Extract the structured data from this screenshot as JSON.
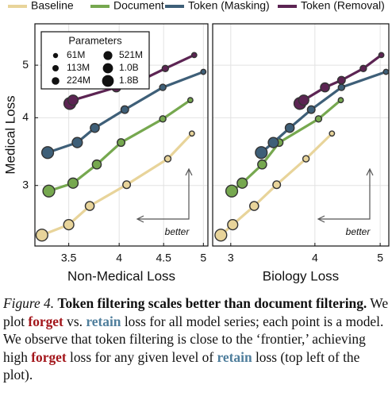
{
  "chart_data": {
    "type": "line",
    "log_scale": true,
    "grid": true,
    "legend": [
      {
        "name": "Baseline",
        "color": "#e8d49a"
      },
      {
        "name": "Document",
        "color": "#76a84f"
      },
      {
        "name": "Token (Masking)",
        "color": "#3e5f78"
      },
      {
        "name": "Token (Removal)",
        "color": "#5c2453"
      }
    ],
    "size_legend": {
      "title": "Parameters",
      "labels": [
        "61M",
        "113M",
        "224M",
        "521M",
        "1.0B",
        "1.8B"
      ]
    },
    "y_label": "Medical Loss",
    "ylim": [
      2.32,
      5.96
    ],
    "yticks": [
      3,
      4,
      5
    ],
    "annotation": "better",
    "panels": [
      {
        "x_label": "Non-Medical Loss",
        "xlim": [
          3.2,
          5.06
        ],
        "xticks": [
          3.5,
          4,
          4.5,
          5
        ],
        "series": [
          {
            "x": [
              3.26,
              3.5,
              3.7,
              4.08,
              4.55,
              4.85
            ],
            "values": [
              2.43,
              2.54,
              2.75,
              3.01,
              3.36,
              3.74
            ]
          },
          {
            "x": [
              3.32,
              3.54,
              3.77,
              4.02,
              4.49,
              4.83
            ],
            "values": [
              2.93,
              3.03,
              3.28,
              3.6,
              3.98,
              4.31
            ]
          },
          {
            "x": [
              3.31,
              3.58,
              3.75,
              4.06,
              4.49,
              5.0
            ],
            "values": [
              3.45,
              3.6,
              3.83,
              4.14,
              4.55,
              4.86
            ]
          },
          {
            "x": [
              3.51,
              3.54,
              3.97,
              4.24,
              4.52,
              4.88
            ],
            "values": [
              4.25,
              4.31,
              4.55,
              4.69,
              4.93,
              5.22
            ]
          }
        ]
      },
      {
        "x_label": "Biology Loss",
        "xlim": [
          2.82,
          5.15
        ],
        "xticks": [
          3,
          4,
          5
        ],
        "series": [
          {
            "x": [
              2.9,
              3.02,
              3.25,
              3.51,
              3.88,
              4.24
            ],
            "values": [
              2.43,
              2.54,
              2.75,
              3.01,
              3.36,
              3.74
            ]
          },
          {
            "x": [
              3.01,
              3.12,
              3.34,
              3.54,
              4.05,
              4.37
            ],
            "values": [
              2.93,
              3.03,
              3.28,
              3.6,
              3.98,
              4.31
            ]
          },
          {
            "x": [
              3.33,
              3.47,
              3.67,
              3.95,
              4.38,
              5.1
            ],
            "values": [
              3.45,
              3.6,
              3.83,
              4.14,
              4.55,
              4.86
            ]
          },
          {
            "x": [
              3.8,
              3.85,
              4.14,
              4.38,
              4.72,
              5.02
            ],
            "values": [
              4.25,
              4.31,
              4.55,
              4.69,
              4.93,
              5.22
            ]
          }
        ]
      }
    ]
  },
  "caption": {
    "label": "Figure 4.",
    "bold": "Token filtering scales better than document filtering.",
    "runs": [
      "We plot ",
      "forget",
      " vs. ",
      "retain",
      " loss for all model series; each point is a model. We observe that token filtering is close to the ‘frontier,’ achieving high ",
      "forget",
      " loss for any given level of ",
      "retain",
      " loss (top left of the plot)."
    ]
  }
}
